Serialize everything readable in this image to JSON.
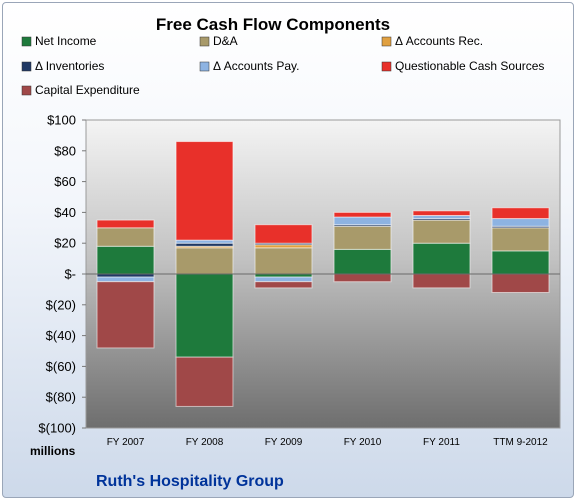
{
  "chart_data": {
    "type": "bar",
    "stacked": true,
    "title": "Free Cash Flow Components",
    "ylabel": "",
    "xlabel": "",
    "unit_label": "millions",
    "footer": "Ruth's Hospitality Group",
    "categories": [
      "FY 2007",
      "FY 2008",
      "FY 2009",
      "FY 2010",
      "FY 2011",
      "TTM 9-2012"
    ],
    "ylim": [
      -100,
      100
    ],
    "yticks": [
      100,
      80,
      60,
      40,
      20,
      0,
      -20,
      -40,
      -60,
      -80,
      -100
    ],
    "ytick_labels": [
      "$100",
      "$80",
      "$60",
      "$40",
      "$20",
      "$-",
      "$(20)",
      "$(40)",
      "$(60)",
      "$(80)",
      "$(100)"
    ],
    "legend_position": "top",
    "grid": false,
    "series": [
      {
        "name": "Net Income",
        "color": "#1e7a3c",
        "values": [
          18,
          -54,
          -2,
          16,
          20,
          15
        ]
      },
      {
        "name": "D&A",
        "color": "#a89a6a",
        "values": [
          12,
          17,
          17,
          15,
          15,
          15
        ]
      },
      {
        "name": "Δ Accounts Rec.",
        "color": "#e0a040",
        "values": [
          0,
          1,
          2,
          0,
          0,
          0
        ]
      },
      {
        "name": "Δ Inventories",
        "color": "#1f3864",
        "values": [
          -2,
          2,
          1,
          1,
          1,
          1
        ]
      },
      {
        "name": "Δ Accounts Pay.",
        "color": "#8db3e2",
        "values": [
          -3,
          2,
          -3,
          5,
          2,
          5
        ]
      },
      {
        "name": "Questionable Cash Sources",
        "color": "#e8302a",
        "values": [
          5,
          64,
          12,
          3,
          3,
          7
        ]
      },
      {
        "name": "Capital Expenditure",
        "color": "#a04848",
        "values": [
          -43,
          -32,
          -4,
          -5,
          -9,
          -12
        ]
      }
    ]
  }
}
